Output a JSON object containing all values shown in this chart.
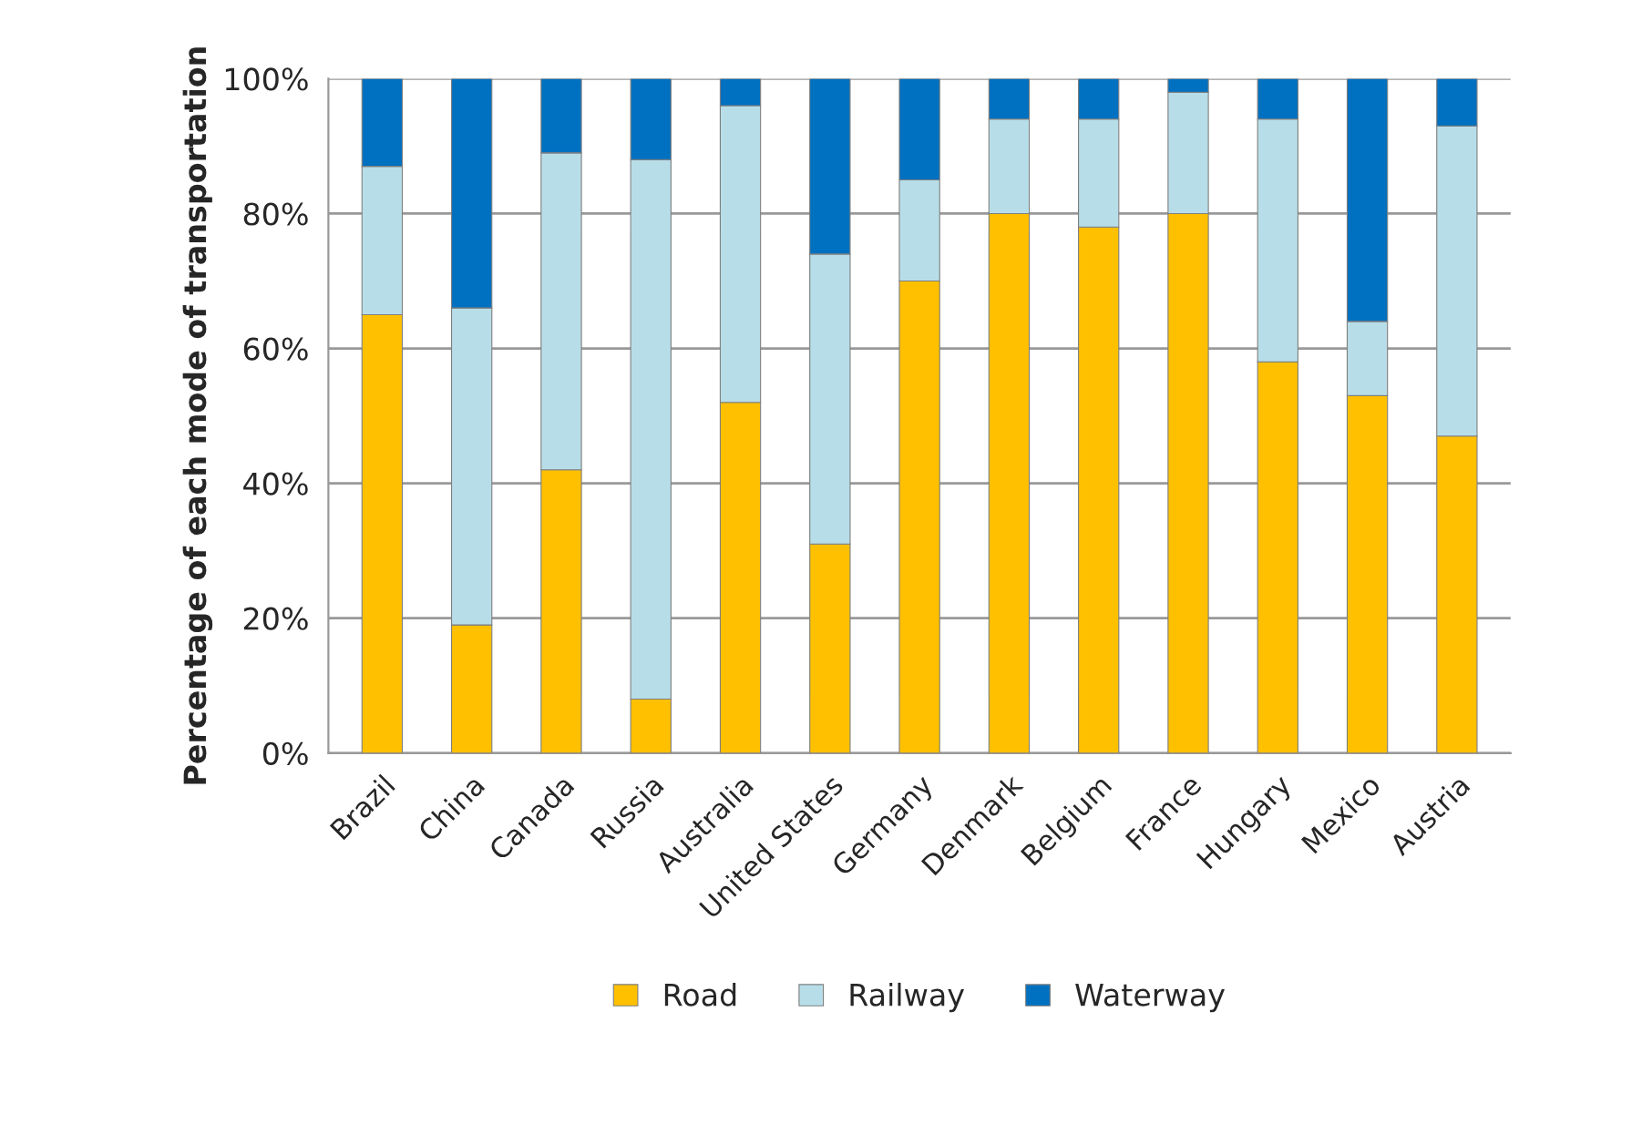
{
  "chart_data": {
    "type": "bar",
    "stacked": true,
    "ylabel": "Percentage of each mode of transportation",
    "categories": [
      "Brazil",
      "China",
      "Canada",
      "Russia",
      "Australia",
      "United States",
      "Germany",
      "Denmark",
      "Belgium",
      "France",
      "Hungary",
      "Mexico",
      "Austria"
    ],
    "series": [
      {
        "name": "Road",
        "color": "#ffc000",
        "values": [
          65,
          19,
          42,
          8,
          52,
          31,
          70,
          80,
          78,
          80,
          58,
          53,
          47
        ]
      },
      {
        "name": "Railway",
        "color": "#b7dee8",
        "values": [
          22,
          47,
          47,
          80,
          44,
          43,
          15,
          14,
          16,
          18,
          36,
          11,
          46
        ]
      },
      {
        "name": "Waterway",
        "color": "#0070c0",
        "values": [
          13,
          34,
          11,
          12,
          4,
          26,
          15,
          6,
          6,
          2,
          6,
          36,
          7
        ]
      }
    ],
    "ylim": [
      0,
      100
    ],
    "yticks": [
      {
        "value": 0,
        "label": "0%"
      },
      {
        "value": 20,
        "label": "20%"
      },
      {
        "value": 40,
        "label": "40%"
      },
      {
        "value": 60,
        "label": "60%"
      },
      {
        "value": 80,
        "label": "80%"
      },
      {
        "value": 100,
        "label": "100%"
      }
    ],
    "grid": "y",
    "legend": "bottom"
  }
}
